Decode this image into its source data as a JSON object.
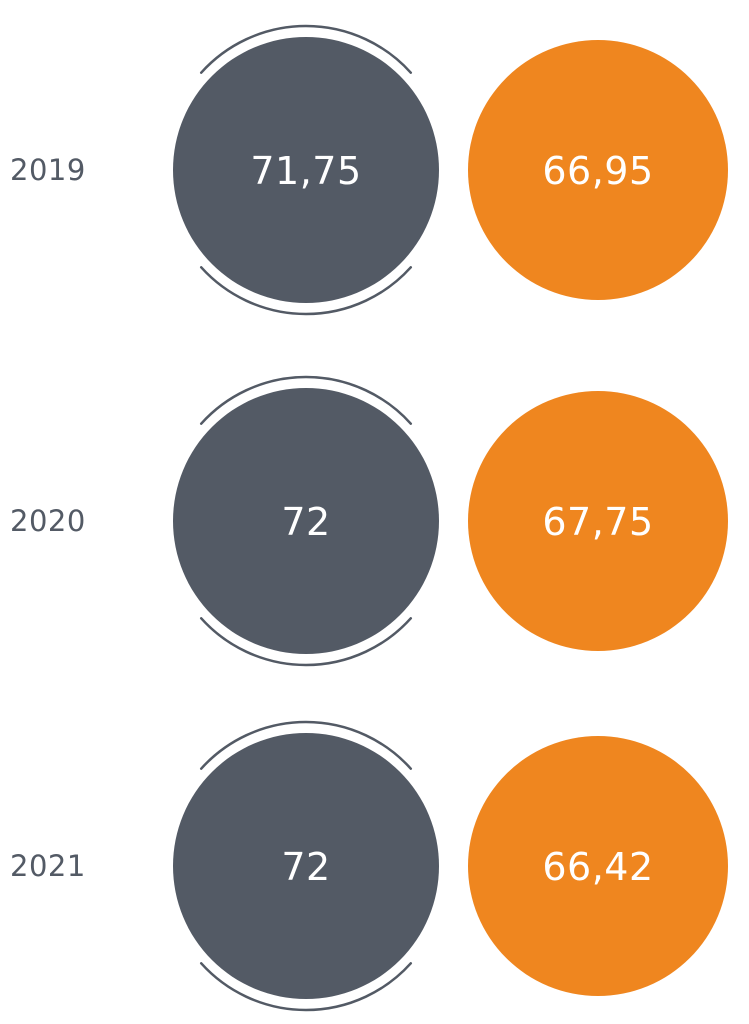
{
  "colors": {
    "series_a": "#535a65",
    "series_b": "#ef861f",
    "ring": "#535a65",
    "year_text": "#535a65",
    "value_text": "#ffffff"
  },
  "chart_data": {
    "type": "table",
    "categories": [
      "2019",
      "2020",
      "2021"
    ],
    "series": [
      {
        "values": [
          "71,75",
          "72",
          "72"
        ]
      },
      {
        "values": [
          "66,95",
          "67,75",
          "66,42"
        ]
      }
    ],
    "title": "",
    "xlabel": "",
    "ylabel": "",
    "grid": false,
    "legend": "none"
  }
}
